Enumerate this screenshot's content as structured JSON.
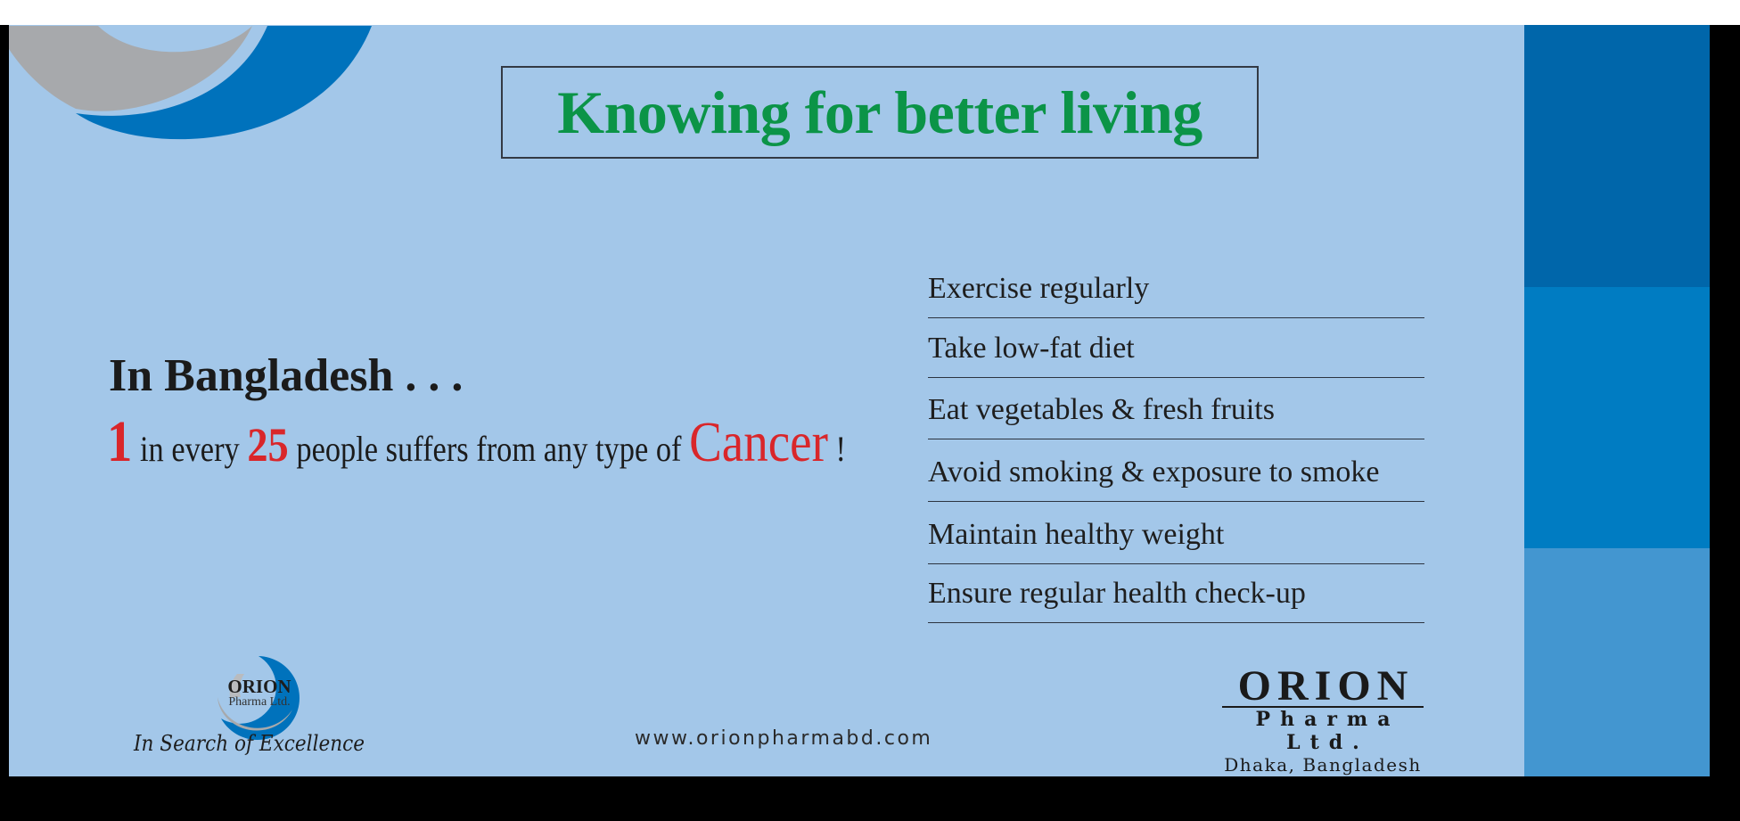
{
  "colors": {
    "background": "#A3C7E9",
    "title_green": "#0B9447",
    "accent_red": "#D9262A",
    "panel_bands": [
      "#0066AA",
      "#007CC2",
      "#4396D0"
    ]
  },
  "title": "Knowing for better living",
  "headline": "In Bangladesh . . .",
  "stat": {
    "num1": "1",
    "text1": " in every ",
    "num2": "25",
    "text2": " people suffers from any type of ",
    "emphasis": "Cancer",
    "end": " !"
  },
  "tips": [
    "Exercise regularly",
    "Take low-fat diet",
    "Eat vegetables & fresh fruits",
    "Avoid smoking & exposure to smoke",
    "Maintain healthy weight",
    "Ensure regular health check-up"
  ],
  "logo_left": {
    "name": "ORION",
    "sub": "Pharma Ltd.",
    "tagline": "In Search of Excellence"
  },
  "website": "www.orionpharmabd.com",
  "logo_right": {
    "name": "ORION",
    "sub": "Pharma Ltd.",
    "location": "Dhaka, Bangladesh"
  }
}
